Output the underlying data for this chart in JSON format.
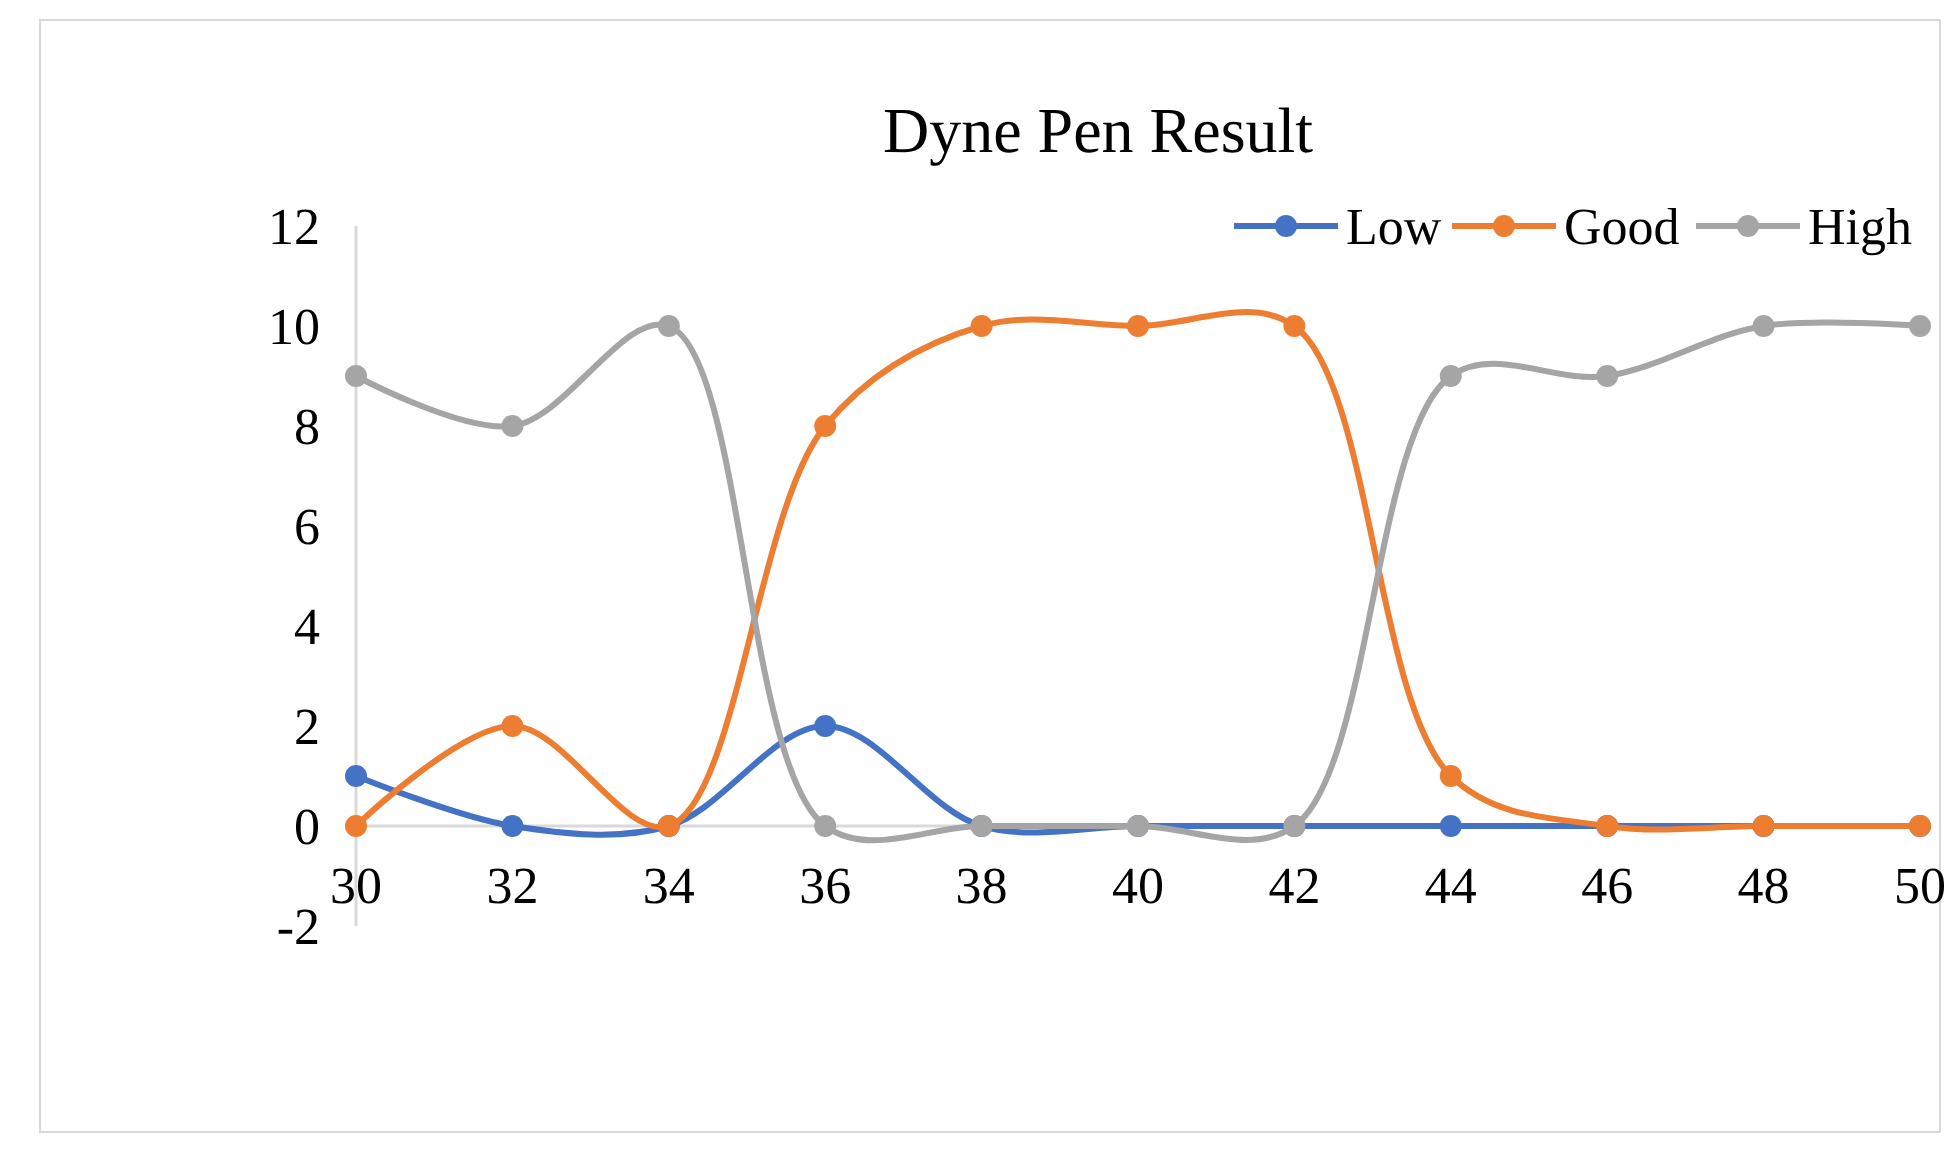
{
  "chart_data": {
    "type": "line",
    "title": "Dyne Pen Result",
    "x": [
      30,
      32,
      34,
      36,
      38,
      40,
      42,
      44,
      46,
      48,
      50
    ],
    "xlim": [
      30,
      50
    ],
    "xticks": [
      30,
      32,
      34,
      36,
      38,
      40,
      42,
      44,
      46,
      48,
      50
    ],
    "ylim": [
      -2,
      12
    ],
    "yticks": [
      -2,
      0,
      2,
      4,
      6,
      8,
      10,
      12
    ],
    "grid": false,
    "legend": "top right",
    "marker": "circle",
    "line_style": "solid",
    "series": [
      {
        "name": "Low",
        "color": "#4472c4",
        "values": [
          1,
          0,
          0,
          2,
          0,
          0,
          0,
          0,
          0,
          0,
          0
        ]
      },
      {
        "name": "Good",
        "color": "#ed7d31",
        "values": [
          0,
          2,
          0,
          8,
          10,
          10,
          10,
          1,
          0,
          0,
          0
        ]
      },
      {
        "name": "High",
        "color": "#a5a5a5",
        "values": [
          9,
          8,
          10,
          0,
          0,
          0,
          0,
          9,
          9,
          10,
          10
        ]
      }
    ]
  }
}
